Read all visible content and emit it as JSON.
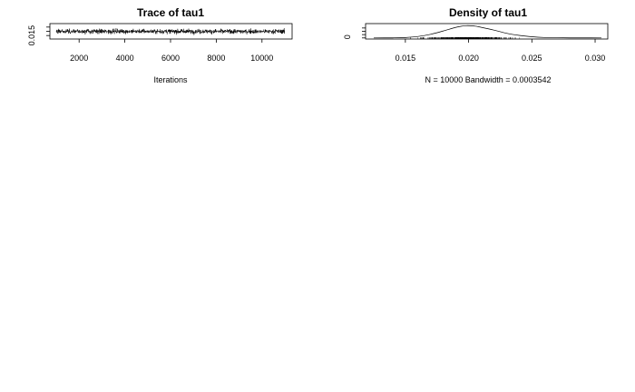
{
  "chart_data": [
    {
      "type": "line",
      "title": "Trace of tau1",
      "xlabel": "Iterations",
      "ylabel": "",
      "xlim": [
        1000,
        11000
      ],
      "ylim": [
        0.0125,
        0.0275
      ],
      "x_ticks": [
        "2000",
        "4000",
        "6000",
        "8000",
        "10000"
      ],
      "y_ticks": [
        "0.015"
      ],
      "series": [
        {
          "x_start": 1001,
          "x_end": 11000,
          "n": 10000,
          "center": 0.0199,
          "spread": 0.0021
        }
      ]
    },
    {
      "type": "line",
      "title": "Density of tau1",
      "xlabel": "N = 10000   Bandwidth = 0.0003542",
      "ylabel": "",
      "xlim": [
        0.0115,
        0.031
      ],
      "ylim": [
        0,
        200
      ],
      "x_ticks": [
        "0.015",
        "0.020",
        "0.025",
        "0.030"
      ],
      "y_ticks": [
        "0"
      ],
      "series": [
        {
          "x": [
            0.0125,
            0.014,
            0.015,
            0.016,
            0.017,
            0.018,
            0.019,
            0.0198,
            0.0205,
            0.021,
            0.022,
            0.023,
            0.024,
            0.025,
            0.026,
            0.027,
            0.028,
            0.029,
            0.0305
          ],
          "y": [
            0,
            1,
            6,
            22,
            55,
            105,
            160,
            185,
            178,
            160,
            118,
            70,
            38,
            18,
            7,
            3,
            1,
            0.4,
            0
          ]
        }
      ]
    }
  ]
}
